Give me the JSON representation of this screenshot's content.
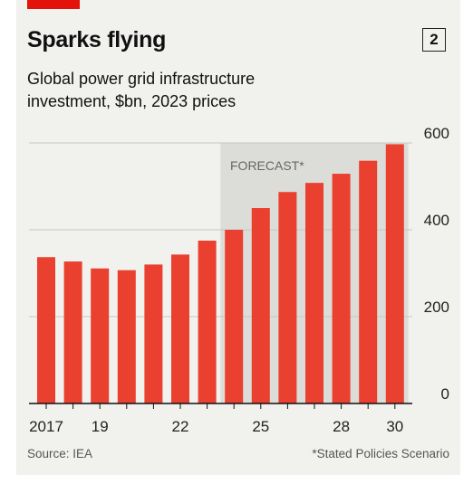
{
  "header": {
    "chart_number": "2"
  },
  "footer": {
    "source": "Source: IEA",
    "note": "*Stated Policies Scenario"
  },
  "colors": {
    "bar": "#e9402f",
    "forecast_shade": "#dcdcd8",
    "brand_red": "#e3120b",
    "background": "#f1f1ee"
  },
  "chart_data": {
    "type": "bar",
    "title": "Sparks flying",
    "subtitle": "Global power grid infrastructure investment, $bn, 2023 prices",
    "xlabel": "",
    "ylabel": "",
    "categories": [
      "2017",
      "2018",
      "2019",
      "2020",
      "2021",
      "2022",
      "2023",
      "2024",
      "2025",
      "2026",
      "2027",
      "2028",
      "2029",
      "2030"
    ],
    "x_tick_labels": [
      {
        "year": "2017",
        "label": "2017"
      },
      {
        "year": "2019",
        "label": "19"
      },
      {
        "year": "2022",
        "label": "22"
      },
      {
        "year": "2025",
        "label": "25"
      },
      {
        "year": "2028",
        "label": "28"
      },
      {
        "year": "2030",
        "label": "30"
      }
    ],
    "values": [
      337,
      327,
      311,
      307,
      320,
      343,
      375,
      400,
      450,
      487,
      508,
      529,
      559,
      597
    ],
    "ylim": [
      0,
      600
    ],
    "yticks": [
      0,
      200,
      400,
      600
    ],
    "y_axis_side": "right",
    "grid": true,
    "forecast": {
      "label": "FORECAST*",
      "start_year": "2024",
      "end_year": "2030"
    }
  }
}
